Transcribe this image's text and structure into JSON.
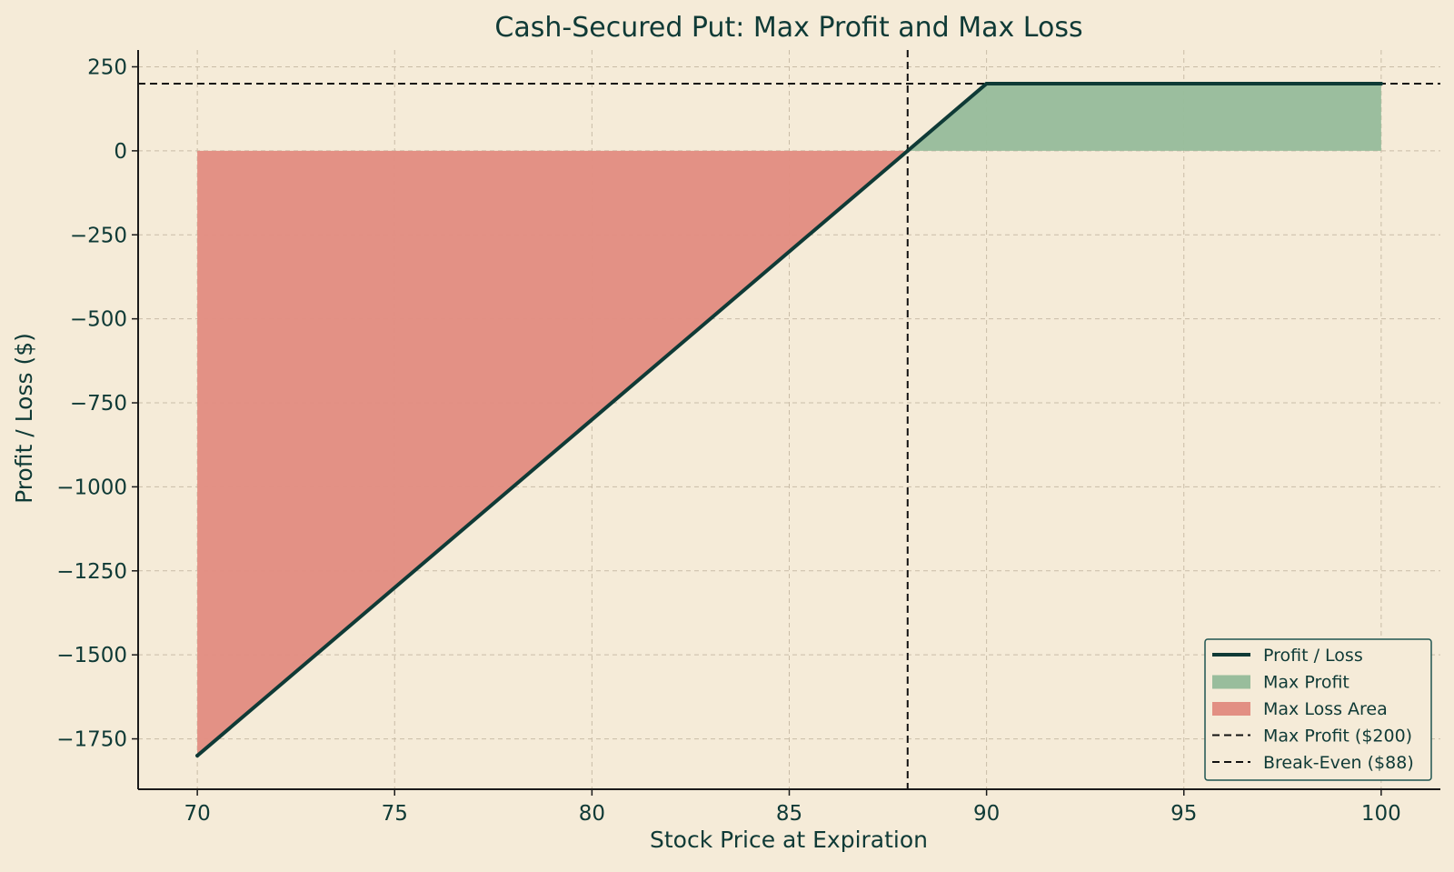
{
  "chart_data": {
    "type": "line",
    "title": "Cash-Secured Put: Max Profit and Max Loss",
    "xlabel": "Stock Price at Expiration",
    "ylabel": "Profit / Loss ($)",
    "xlim": [
      68.5,
      101.5
    ],
    "ylim": [
      -1900,
      300
    ],
    "xticks": [
      70,
      75,
      80,
      85,
      90,
      95,
      100
    ],
    "xtick_labels": [
      "70",
      "75",
      "80",
      "85",
      "90",
      "95",
      "100"
    ],
    "yticks": [
      250,
      0,
      -250,
      -500,
      -750,
      -1000,
      -1250,
      -1500,
      -1750
    ],
    "ytick_labels": [
      "250",
      "0",
      "−250",
      "−500",
      "−750",
      "−1000",
      "−1250",
      "−1500",
      "−1750"
    ],
    "grid": true,
    "legend_position": "lower-right",
    "series": [
      {
        "name": "Profit / Loss",
        "kind": "line",
        "color": "#0f3a36",
        "x": [
          70,
          88,
          90,
          100
        ],
        "y": [
          -1800,
          0,
          200,
          200
        ]
      },
      {
        "name": "Max Profit",
        "kind": "area",
        "color": "#99bd9c",
        "x": [
          88,
          90,
          100
        ],
        "y": [
          0,
          200,
          200
        ],
        "baseline": 0
      },
      {
        "name": "Max Loss Area",
        "kind": "area",
        "color": "#e28f83",
        "x": [
          70,
          88
        ],
        "y": [
          -1800,
          0
        ],
        "baseline": 0
      },
      {
        "name": "Max Profit ($200)",
        "kind": "hline",
        "color": "#111111",
        "value": 200
      },
      {
        "name": "Break-Even ($88)",
        "kind": "vline",
        "color": "#111111",
        "value": 88
      }
    ]
  }
}
